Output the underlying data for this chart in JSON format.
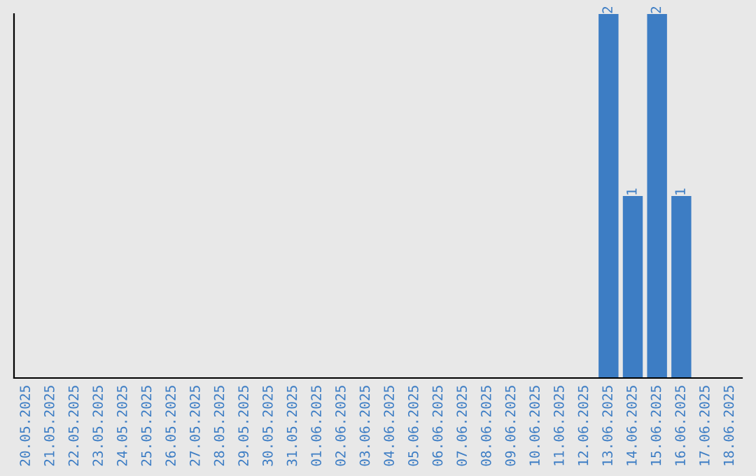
{
  "chart_data": {
    "type": "bar",
    "categories": [
      "20.05.2025",
      "21.05.2025",
      "22.05.2025",
      "23.05.2025",
      "24.05.2025",
      "25.05.2025",
      "26.05.2025",
      "27.05.2025",
      "28.05.2025",
      "29.05.2025",
      "30.05.2025",
      "31.05.2025",
      "01.06.2025",
      "02.06.2025",
      "03.06.2025",
      "04.06.2025",
      "05.06.2025",
      "06.06.2025",
      "07.06.2025",
      "08.06.2025",
      "09.06.2025",
      "10.06.2025",
      "11.06.2025",
      "12.06.2025",
      "13.06.2025",
      "14.06.2025",
      "15.06.2025",
      "16.06.2025",
      "17.06.2025",
      "18.06.2025"
    ],
    "values": [
      null,
      null,
      null,
      null,
      null,
      null,
      null,
      null,
      null,
      null,
      null,
      null,
      null,
      null,
      null,
      null,
      null,
      null,
      null,
      null,
      null,
      null,
      null,
      null,
      2,
      1,
      2,
      1,
      null,
      null
    ],
    "data_labels": true,
    "color": "#3d7dc4",
    "tick_labels": "x",
    "grid": false,
    "legend": false
  }
}
